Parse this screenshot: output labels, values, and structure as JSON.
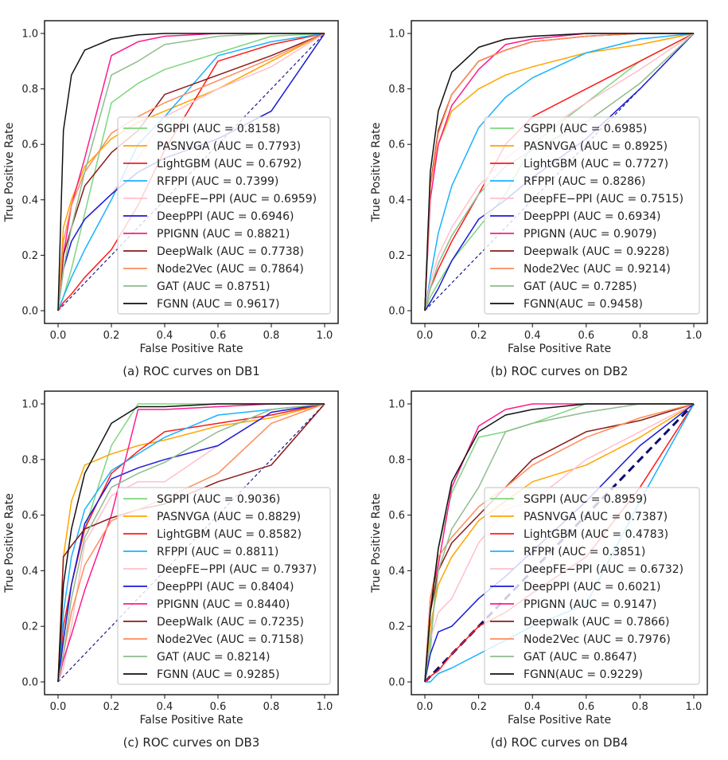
{
  "chart_data": [
    {
      "type": "line",
      "caption": "(a) ROC curves on DB1",
      "xlabel": "False Positive Rate",
      "ylabel": "True Positive Rate",
      "xlim": [
        0,
        1
      ],
      "ylim": [
        0,
        1
      ],
      "xticks": [
        "0.0",
        "0.2",
        "0.4",
        "0.6",
        "0.8",
        "1.0"
      ],
      "yticks": [
        "0.0",
        "0.2",
        "0.4",
        "0.6",
        "0.8",
        "1.0"
      ],
      "legend_placement": "lower-right",
      "grid": false,
      "x": [
        0,
        0.02,
        0.05,
        0.1,
        0.2,
        0.3,
        0.4,
        0.6,
        0.8,
        1
      ],
      "diagonal": {
        "style": "dashed",
        "color": "#1a1a8c",
        "thick": false
      },
      "series": [
        {
          "name": "SGPPI (AUC = 0.8158)",
          "color": "#7fd67f",
          "values": [
            0,
            0.05,
            0.15,
            0.35,
            0.75,
            0.82,
            0.87,
            0.93,
            0.99,
            1
          ]
        },
        {
          "name": "PASNVGA (AUC = 0.7793)",
          "color": "#ffa500",
          "values": [
            0,
            0.3,
            0.4,
            0.52,
            0.62,
            0.68,
            0.72,
            0.8,
            0.9,
            1
          ]
        },
        {
          "name": "LightGBM (AUC = 0.6792)",
          "color": "#ff1a1a",
          "values": [
            0,
            0.03,
            0.06,
            0.12,
            0.22,
            0.38,
            0.58,
            0.9,
            0.96,
            1
          ]
        },
        {
          "name": "RFPPI (AUC = 0.7399)",
          "color": "#1ab2ff",
          "values": [
            0,
            0.05,
            0.12,
            0.22,
            0.4,
            0.6,
            0.7,
            0.92,
            0.97,
            1
          ]
        },
        {
          "name": "DeepFE−PPI (AUC = 0.6959)",
          "color": "#ffc0cb",
          "values": [
            0,
            0.15,
            0.25,
            0.33,
            0.42,
            0.55,
            0.7,
            0.8,
            0.88,
            1
          ]
        },
        {
          "name": "DeepPPI (AUC = 0.6946)",
          "color": "#1a1ad6",
          "values": [
            0,
            0.15,
            0.25,
            0.33,
            0.42,
            0.5,
            0.55,
            0.62,
            0.72,
            1
          ]
        },
        {
          "name": "PPIGNN (AUC = 0.8821)",
          "color": "#ff1a8c",
          "values": [
            0,
            0.2,
            0.38,
            0.55,
            0.92,
            0.97,
            0.99,
            1,
            1,
            1
          ]
        },
        {
          "name": "DeepWalk (AUC = 0.7738)",
          "color": "#8b1a1a",
          "values": [
            0,
            0.2,
            0.3,
            0.45,
            0.57,
            0.65,
            0.78,
            0.85,
            0.92,
            1
          ]
        },
        {
          "name": "Node2Vec (AUC = 0.7864)",
          "color": "#ff8c5a",
          "values": [
            0,
            0.25,
            0.38,
            0.5,
            0.64,
            0.7,
            0.75,
            0.83,
            0.91,
            1
          ]
        },
        {
          "name": "GAT (AUC = 0.8751)",
          "color": "#8fbc8f",
          "values": [
            0,
            0.15,
            0.3,
            0.5,
            0.85,
            0.9,
            0.96,
            0.99,
            1,
            1
          ]
        },
        {
          "name": "FGNN (AUC = 0.9617)",
          "color": "#111111",
          "values": [
            0,
            0.65,
            0.85,
            0.94,
            0.98,
            0.995,
            1,
            1,
            1,
            1
          ]
        }
      ]
    },
    {
      "type": "line",
      "caption": "(b) ROC curves on DB2",
      "xlabel": "False Positive Rate",
      "ylabel": "True Positive Rate",
      "xlim": [
        0,
        1
      ],
      "ylim": [
        0,
        1
      ],
      "xticks": [
        "0.0",
        "0.2",
        "0.4",
        "0.6",
        "0.8",
        "1.0"
      ],
      "yticks": [
        "0.0",
        "0.2",
        "0.4",
        "0.6",
        "0.8",
        "1.0"
      ],
      "legend_placement": "lower-right",
      "grid": false,
      "x": [
        0,
        0.02,
        0.05,
        0.1,
        0.2,
        0.3,
        0.4,
        0.6,
        0.8,
        1
      ],
      "diagonal": {
        "style": "dashed",
        "color": "#1a1a8c",
        "thick": false
      },
      "series": [
        {
          "name": "SGPPI (AUC = 0.6985)",
          "color": "#7fd67f",
          "values": [
            0,
            0.05,
            0.1,
            0.18,
            0.3,
            0.42,
            0.6,
            0.75,
            0.9,
            1
          ]
        },
        {
          "name": "PASNVGA (AUC = 0.8925)",
          "color": "#ffa500",
          "values": [
            0,
            0.45,
            0.6,
            0.72,
            0.8,
            0.85,
            0.88,
            0.93,
            0.96,
            1
          ]
        },
        {
          "name": "LightGBM (AUC = 0.7727)",
          "color": "#ff1a1a",
          "values": [
            0,
            0.08,
            0.15,
            0.25,
            0.42,
            0.6,
            0.7,
            0.8,
            0.9,
            1
          ]
        },
        {
          "name": "RFPPI (AUC = 0.8286)",
          "color": "#1ab2ff",
          "values": [
            0,
            0.12,
            0.28,
            0.45,
            0.66,
            0.77,
            0.84,
            0.93,
            0.98,
            1
          ]
        },
        {
          "name": "DeepFE−PPI (AUC = 0.7515)",
          "color": "#ffc0cb",
          "values": [
            0,
            0.1,
            0.2,
            0.3,
            0.45,
            0.55,
            0.62,
            0.75,
            0.87,
            1
          ]
        },
        {
          "name": "DeepPPI (AUC = 0.6934)",
          "color": "#1a1ad6",
          "values": [
            0,
            0.03,
            0.08,
            0.18,
            0.33,
            0.4,
            0.48,
            0.62,
            0.8,
            1
          ]
        },
        {
          "name": "PPIGNN (AUC = 0.9079)",
          "color": "#ff1a8c",
          "values": [
            0,
            0.4,
            0.6,
            0.74,
            0.87,
            0.96,
            0.98,
            1,
            1,
            1
          ]
        },
        {
          "name": "Deepwalk (AUC = 0.9228)",
          "color": "#8b1a1a",
          "values": [
            0,
            0.45,
            0.65,
            0.78,
            0.9,
            0.94,
            0.97,
            0.99,
            1,
            1
          ]
        },
        {
          "name": "Node2Vec (AUC = 0.9214)",
          "color": "#ff8c5a",
          "values": [
            0,
            0.44,
            0.64,
            0.78,
            0.9,
            0.94,
            0.97,
            0.99,
            1,
            1
          ]
        },
        {
          "name": "GAT (AUC = 0.7285)",
          "color": "#8fbc8f",
          "values": [
            0,
            0.08,
            0.17,
            0.27,
            0.42,
            0.52,
            0.58,
            0.68,
            0.82,
            1
          ]
        },
        {
          "name": "FGNN(AUC = 0.9458)",
          "color": "#111111",
          "values": [
            0,
            0.5,
            0.72,
            0.86,
            0.95,
            0.98,
            0.99,
            1,
            1,
            1
          ]
        }
      ]
    },
    {
      "type": "line",
      "caption": "(c) ROC curves on DB3",
      "xlabel": "False Positive Rate",
      "ylabel": "True Positive Rate",
      "xlim": [
        0,
        1
      ],
      "ylim": [
        0,
        1
      ],
      "xticks": [
        "0.0",
        "0.2",
        "0.4",
        "0.6",
        "0.8",
        "1.0"
      ],
      "yticks": [
        "0.0",
        "0.2",
        "0.4",
        "0.6",
        "0.8",
        "1.0"
      ],
      "legend_placement": "lower-right",
      "grid": false,
      "x": [
        0,
        0.02,
        0.05,
        0.1,
        0.2,
        0.3,
        0.4,
        0.6,
        0.8,
        1
      ],
      "diagonal": {
        "style": "dashed",
        "color": "#1a1a8c",
        "thick": false
      },
      "series": [
        {
          "name": "SGPPI (AUC = 0.9036)",
          "color": "#7fd67f",
          "values": [
            0,
            0.15,
            0.35,
            0.55,
            0.85,
            1,
            1,
            1,
            1,
            1
          ]
        },
        {
          "name": "PASNVGA (AUC = 0.8829)",
          "color": "#ffa500",
          "values": [
            0,
            0.45,
            0.65,
            0.78,
            0.82,
            0.85,
            0.87,
            0.92,
            0.95,
            1
          ]
        },
        {
          "name": "LightGBM (AUC = 0.8582)",
          "color": "#ff1a1a",
          "values": [
            0,
            0.2,
            0.35,
            0.55,
            0.75,
            0.83,
            0.9,
            0.93,
            0.96,
            1
          ]
        },
        {
          "name": "RFPPI (AUC = 0.8811)",
          "color": "#1ab2ff",
          "values": [
            0,
            0.25,
            0.45,
            0.62,
            0.76,
            0.82,
            0.88,
            0.96,
            0.98,
            1
          ]
        },
        {
          "name": "DeepFE−PPI (AUC = 0.7937)",
          "color": "#ffc0cb",
          "values": [
            0,
            0.05,
            0.2,
            0.5,
            0.67,
            0.72,
            0.72,
            0.85,
            0.97,
            1
          ]
        },
        {
          "name": "DeepPPI (AUC = 0.8404)",
          "color": "#1a1ad6",
          "values": [
            0,
            0.15,
            0.35,
            0.57,
            0.73,
            0.77,
            0.8,
            0.85,
            0.97,
            1
          ]
        },
        {
          "name": "PPIGNN (AUC = 0.8440)",
          "color": "#ff1a8c",
          "values": [
            0,
            0.08,
            0.17,
            0.33,
            0.6,
            0.98,
            0.98,
            0.99,
            1,
            1
          ]
        },
        {
          "name": "DeepWalk (AUC = 0.7235)",
          "color": "#8b1a1a",
          "values": [
            0,
            0.45,
            0.49,
            0.55,
            0.59,
            0.62,
            0.64,
            0.72,
            0.78,
            1
          ]
        },
        {
          "name": "Node2Vec (AUC = 0.7158)",
          "color": "#ff8c5a",
          "values": [
            0,
            0.1,
            0.25,
            0.42,
            0.58,
            0.62,
            0.66,
            0.75,
            0.93,
            1
          ]
        },
        {
          "name": "GAT (AUC = 0.8214)",
          "color": "#8fbc8f",
          "values": [
            0,
            0.1,
            0.3,
            0.52,
            0.7,
            0.75,
            0.79,
            0.9,
            0.98,
            1
          ]
        },
        {
          "name": "FGNN (AUC = 0.9285)",
          "color": "#111111",
          "values": [
            0,
            0.35,
            0.55,
            0.75,
            0.93,
            0.99,
            0.99,
            1,
            1,
            1
          ]
        }
      ]
    },
    {
      "type": "line",
      "caption": "(d) ROC curves on DB4",
      "xlabel": "False Positive Rate",
      "ylabel": "True Positive Rate",
      "xlim": [
        0,
        1
      ],
      "ylim": [
        0,
        1
      ],
      "xticks": [
        "0.0",
        "0.2",
        "0.4",
        "0.6",
        "0.8",
        "1.0"
      ],
      "yticks": [
        "0.0",
        "0.2",
        "0.4",
        "0.6",
        "0.8",
        "1.0"
      ],
      "legend_placement": "lower-right",
      "grid": false,
      "x": [
        0,
        0.02,
        0.05,
        0.1,
        0.2,
        0.3,
        0.4,
        0.6,
        0.8,
        1
      ],
      "diagonal": {
        "style": "dashed",
        "color": "#0d0d6e",
        "thick": true
      },
      "series": [
        {
          "name": "SGPPI (AUC = 0.8959)",
          "color": "#7fd67f",
          "values": [
            0,
            0.1,
            0.48,
            0.68,
            0.88,
            0.9,
            0.93,
            1,
            1,
            1
          ]
        },
        {
          "name": "PASNVGA (AUC = 0.7387)",
          "color": "#ffa500",
          "values": [
            0,
            0.2,
            0.35,
            0.45,
            0.58,
            0.65,
            0.72,
            0.78,
            0.88,
            1
          ]
        },
        {
          "name": "LightGBM (AUC = 0.4783)",
          "color": "#ff1a1a",
          "values": [
            0,
            0.02,
            0.04,
            0.1,
            0.2,
            0.25,
            0.32,
            0.45,
            0.7,
            1
          ]
        },
        {
          "name": "RFPPI (AUC = 0.3851)",
          "color": "#1ab2ff",
          "values": [
            0,
            0,
            0.03,
            0.05,
            0.1,
            0.15,
            0.2,
            0.28,
            0.65,
            1
          ]
        },
        {
          "name": "DeepFE−PPI (AUC = 0.6732)",
          "color": "#ffc0cb",
          "values": [
            0,
            0.15,
            0.25,
            0.3,
            0.5,
            0.62,
            0.65,
            0.8,
            0.9,
            1
          ]
        },
        {
          "name": "DeepPPI (AUC = 0.6021)",
          "color": "#1a1ad6",
          "values": [
            0,
            0.1,
            0.18,
            0.2,
            0.3,
            0.38,
            0.47,
            0.65,
            0.85,
            1
          ]
        },
        {
          "name": "PPIGNN (AUC = 0.9147)",
          "color": "#ff1a8c",
          "values": [
            0,
            0.3,
            0.42,
            0.7,
            0.92,
            0.98,
            1,
            1,
            1,
            1
          ]
        },
        {
          "name": "Deepwalk (AUC = 0.7866)",
          "color": "#8b1a1a",
          "values": [
            0,
            0.25,
            0.4,
            0.5,
            0.6,
            0.7,
            0.8,
            0.9,
            0.94,
            1
          ]
        },
        {
          "name": "Node2Vec (AUC = 0.7976)",
          "color": "#ff8c5a",
          "values": [
            0,
            0.3,
            0.45,
            0.52,
            0.63,
            0.7,
            0.78,
            0.88,
            0.95,
            1
          ]
        },
        {
          "name": "GAT (AUC = 0.8647)",
          "color": "#8fbc8f",
          "values": [
            0,
            0.15,
            0.4,
            0.55,
            0.7,
            0.9,
            0.93,
            0.97,
            1,
            1
          ]
        },
        {
          "name": "FGNN(AUC = 0.9229)",
          "color": "#111111",
          "values": [
            0,
            0.25,
            0.48,
            0.72,
            0.9,
            0.96,
            0.98,
            1,
            1,
            1
          ]
        }
      ]
    }
  ]
}
